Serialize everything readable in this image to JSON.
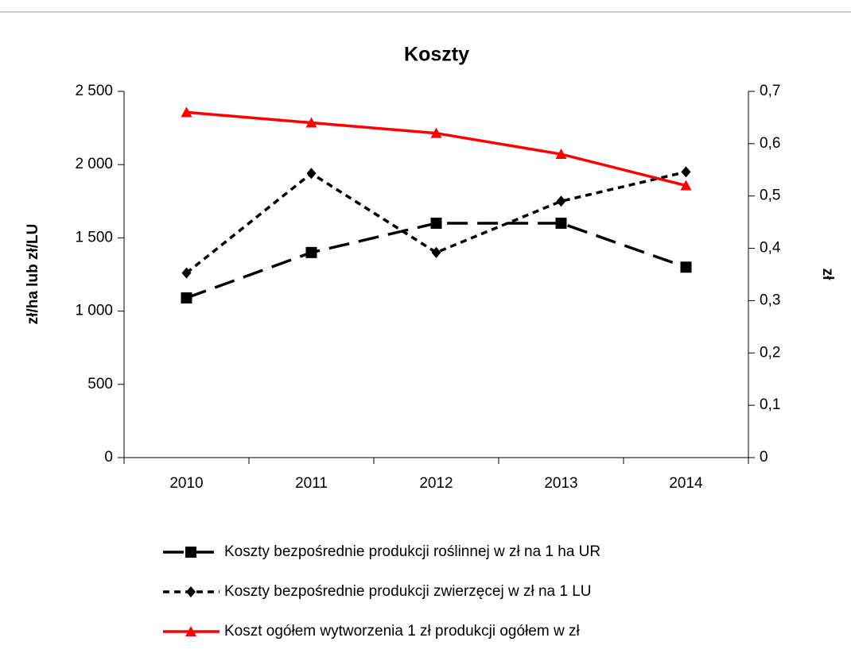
{
  "chart_data": {
    "type": "line",
    "title": "Koszty",
    "ylabel": "zł/ha lub zł/LU",
    "y2label": "zł",
    "categories": [
      "2010",
      "2011",
      "2012",
      "2013",
      "2014"
    ],
    "series": [
      {
        "name": "Koszty bezpośrednie produkcji roślinnej w zł na 1 ha UR",
        "color": "#000000",
        "marker": "square",
        "dash": "long",
        "values": [
          1090,
          1400,
          1600,
          1600,
          1300
        ]
      },
      {
        "name": "Koszty bezpośrednie produkcji zwierzęcej w zł na 1 LU",
        "color": "#000000",
        "marker": "diamond",
        "dash": "short",
        "values": [
          1260,
          1940,
          1400,
          1750,
          1950
        ]
      },
      {
        "name": "Koszt ogółem wytworzenia 1 zł produkcji ogółem w zł",
        "color": "#ff0000",
        "marker": "triangle",
        "dash": "solid",
        "axis": "y2",
        "values": [
          0.66,
          0.64,
          0.62,
          0.58,
          0.52
        ]
      }
    ],
    "ylim": [
      0,
      2500
    ],
    "yticks": [
      0,
      500,
      {
        "value": 1000,
        "label": "1 000"
      },
      {
        "value": 1500,
        "label": "1 500"
      },
      {
        "value": 2000,
        "label": "2 000"
      },
      {
        "value": 2500,
        "label": "2 500"
      }
    ],
    "y2lim": [
      0,
      0.7
    ],
    "y2ticks": [
      0,
      {
        "value": 0.1,
        "label": "0,1"
      },
      {
        "value": 0.2,
        "label": "0,2"
      },
      {
        "value": 0.3,
        "label": "0,3"
      },
      {
        "value": 0.4,
        "label": "0,4"
      },
      {
        "value": 0.5,
        "label": "0,5"
      },
      {
        "value": 0.6,
        "label": "0,6"
      },
      {
        "value": 0.7,
        "label": "0,7"
      }
    ],
    "grid": false,
    "legend": "bottom"
  }
}
